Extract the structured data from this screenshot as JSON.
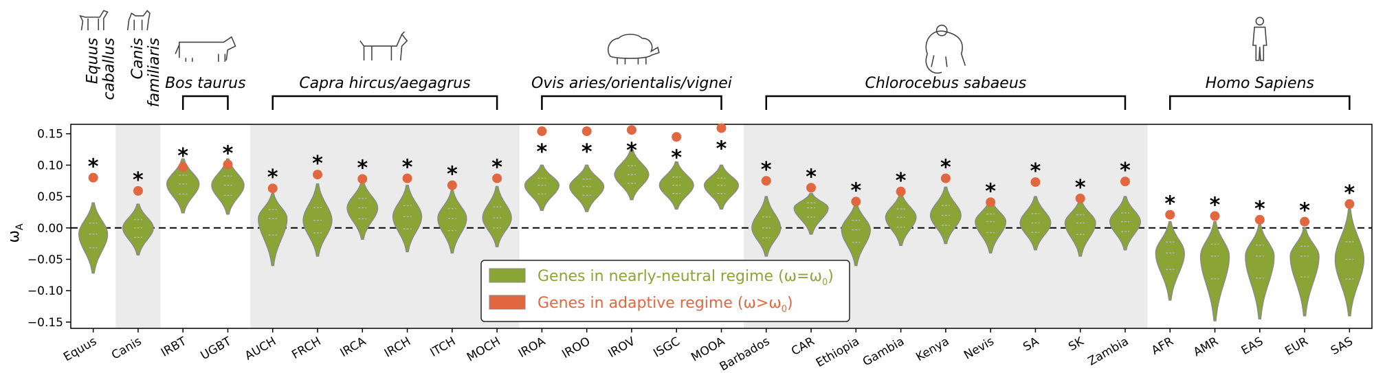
{
  "chart_data": {
    "type": "violin",
    "ylabel": "ω",
    "ylabel_sub": "A",
    "ylim": [
      -0.16,
      0.165
    ],
    "yticks": [
      -0.15,
      -0.1,
      -0.05,
      0.0,
      0.05,
      0.1,
      0.15
    ],
    "ytick_labels": [
      "−0.15",
      "−0.10",
      "−0.05",
      "0.00",
      "0.05",
      "0.10",
      "0.15"
    ],
    "grid": false,
    "zero_line": "dashed",
    "legend_position": "bottom-center",
    "colors": {
      "neutral": "#8aa535",
      "adaptive": "#e06740",
      "shade": "#ebebeb",
      "violin_edge": "#8a8a8a"
    },
    "categories": [
      "Equus",
      "Canis",
      "IRBT",
      "UGBT",
      "AUCH",
      "FRCH",
      "IRCA",
      "IRCH",
      "ITCH",
      "MOCH",
      "IROA",
      "IROO",
      "IROV",
      "ISGC",
      "MOOA",
      "Barbados",
      "CAR",
      "Ethiopia",
      "Gambia",
      "Kenya",
      "Nevis",
      "SA",
      "SK",
      "Zambia",
      "AFR",
      "AMR",
      "EAS",
      "EUR",
      "SAS"
    ],
    "species_groups": [
      {
        "name_lines": [
          "Equus",
          "caballus"
        ],
        "categories": [
          "Equus"
        ],
        "icon": "horse-icon",
        "shaded": false
      },
      {
        "name_lines": [
          "Canis",
          "familiaris"
        ],
        "categories": [
          "Canis"
        ],
        "icon": "dog-icon",
        "shaded": true
      },
      {
        "name_lines": [
          "Bos taurus"
        ],
        "categories": [
          "IRBT",
          "UGBT"
        ],
        "icon": "cow-icon",
        "shaded": false
      },
      {
        "name_lines": [
          "Capra hircus/aegagrus"
        ],
        "categories": [
          "AUCH",
          "FRCH",
          "IRCA",
          "IRCH",
          "ITCH",
          "MOCH"
        ],
        "icon": "goat-icon",
        "shaded": true
      },
      {
        "name_lines": [
          "Ovis aries/orientalis/vignei"
        ],
        "categories": [
          "IROA",
          "IROO",
          "IROV",
          "ISGC",
          "MOOA"
        ],
        "icon": "sheep-icon",
        "shaded": false
      },
      {
        "name_lines": [
          "Chlorocebus sabaeus"
        ],
        "categories": [
          "Barbados",
          "CAR",
          "Ethiopia",
          "Gambia",
          "Kenya",
          "Nevis",
          "SA",
          "SK",
          "Zambia"
        ],
        "icon": "monkey-icon",
        "shaded": true
      },
      {
        "name_lines": [
          "Homo Sapiens"
        ],
        "categories": [
          "AFR",
          "AMR",
          "EAS",
          "EUR",
          "SAS"
        ],
        "icon": "human-icon",
        "shaded": false
      }
    ],
    "series": [
      {
        "name": "Genes in nearly-neutral regime (ω=ω0)",
        "kind": "violin",
        "values": [
          {
            "center": -0.01,
            "min": -0.072,
            "max": 0.04,
            "width": 0.8
          },
          {
            "center": 0.0,
            "min": -0.043,
            "max": 0.038,
            "width": 0.85
          },
          {
            "center": 0.07,
            "min": 0.024,
            "max": 0.11,
            "width": 0.9
          },
          {
            "center": 0.068,
            "min": 0.022,
            "max": 0.11,
            "width": 0.9
          },
          {
            "center": 0.015,
            "min": -0.06,
            "max": 0.055,
            "width": 0.8
          },
          {
            "center": 0.012,
            "min": -0.045,
            "max": 0.07,
            "width": 0.8
          },
          {
            "center": 0.032,
            "min": -0.018,
            "max": 0.075,
            "width": 0.85
          },
          {
            "center": 0.018,
            "min": -0.038,
            "max": 0.068,
            "width": 0.8
          },
          {
            "center": 0.015,
            "min": -0.04,
            "max": 0.06,
            "width": 0.8
          },
          {
            "center": 0.016,
            "min": -0.03,
            "max": 0.066,
            "width": 0.8
          },
          {
            "center": 0.068,
            "min": 0.028,
            "max": 0.1,
            "width": 0.95
          },
          {
            "center": 0.066,
            "min": 0.026,
            "max": 0.1,
            "width": 0.95
          },
          {
            "center": 0.085,
            "min": 0.045,
            "max": 0.125,
            "width": 0.95
          },
          {
            "center": 0.068,
            "min": 0.03,
            "max": 0.105,
            "width": 0.95
          },
          {
            "center": 0.068,
            "min": 0.03,
            "max": 0.1,
            "width": 0.95
          },
          {
            "center": 0.0,
            "min": -0.045,
            "max": 0.05,
            "width": 0.8
          },
          {
            "center": 0.032,
            "min": -0.01,
            "max": 0.055,
            "width": 0.95
          },
          {
            "center": -0.003,
            "min": -0.06,
            "max": 0.04,
            "width": 0.8
          },
          {
            "center": 0.017,
            "min": -0.028,
            "max": 0.055,
            "width": 0.85
          },
          {
            "center": 0.02,
            "min": -0.025,
            "max": 0.065,
            "width": 0.85
          },
          {
            "center": 0.01,
            "min": -0.04,
            "max": 0.045,
            "width": 0.85
          },
          {
            "center": 0.008,
            "min": -0.035,
            "max": 0.05,
            "width": 0.85
          },
          {
            "center": 0.008,
            "min": -0.045,
            "max": 0.045,
            "width": 0.85
          },
          {
            "center": 0.01,
            "min": -0.035,
            "max": 0.05,
            "width": 0.85
          },
          {
            "center": -0.04,
            "min": -0.115,
            "max": 0.01,
            "width": 0.8
          },
          {
            "center": -0.045,
            "min": -0.148,
            "max": 0.01,
            "width": 0.8
          },
          {
            "center": -0.045,
            "min": -0.145,
            "max": 0.005,
            "width": 0.8
          },
          {
            "center": -0.045,
            "min": -0.14,
            "max": 0.0,
            "width": 0.8
          },
          {
            "center": -0.05,
            "min": -0.14,
            "max": 0.03,
            "width": 0.8
          }
        ]
      },
      {
        "name": "Genes in adaptive regime (ω>ω0)",
        "kind": "point",
        "values": [
          0.08,
          0.059,
          0.097,
          0.101,
          0.063,
          0.085,
          0.078,
          0.079,
          0.068,
          0.079,
          0.154,
          0.154,
          0.156,
          0.145,
          0.159,
          0.075,
          0.064,
          0.042,
          0.058,
          0.079,
          0.041,
          0.073,
          0.047,
          0.074,
          0.021,
          0.019,
          0.013,
          0.01,
          0.038
        ],
        "significance": [
          "*",
          "*",
          "*",
          "*",
          "*",
          "*",
          "*",
          "*",
          "*",
          "*",
          "*",
          "*",
          "*",
          "*",
          "*",
          "*",
          "*",
          "*",
          "*",
          "*",
          "*",
          "*",
          "*",
          "*",
          "*",
          "*",
          "*",
          "*",
          "*"
        ],
        "star_below_point": [
          false,
          false,
          false,
          false,
          false,
          false,
          false,
          false,
          false,
          false,
          true,
          true,
          true,
          true,
          true,
          false,
          false,
          false,
          false,
          false,
          false,
          false,
          false,
          false,
          false,
          false,
          false,
          false,
          false
        ]
      }
    ],
    "legend": [
      {
        "label": "Genes in nearly-neutral regime (ω=ω",
        "sub": "0",
        "tail": ")",
        "color": "#8aa535"
      },
      {
        "label": "Genes in adaptive regime (ω>ω",
        "sub": "0",
        "tail": ")",
        "color": "#e06740"
      }
    ]
  }
}
